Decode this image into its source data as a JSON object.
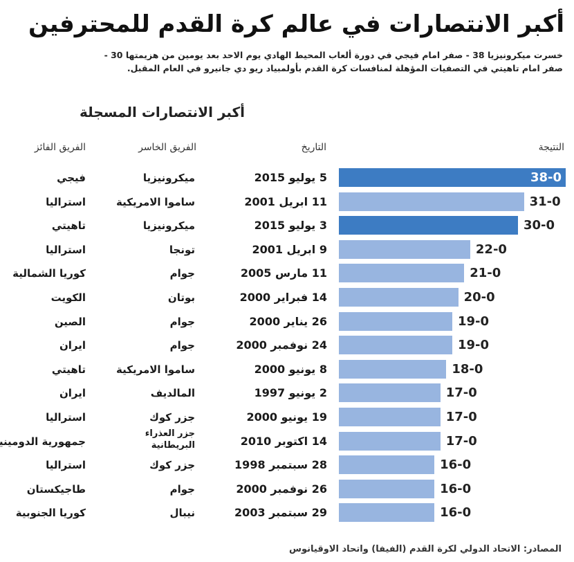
{
  "title": "أكبر الانتصارات في عالم كرة القدم للمحترفين",
  "subtitle_lines": [
    "خسرت ميكرونيزيا 38 - صفر امام فيجي في دورة ألعاب المحيط الهادي يوم الاحد بعد يومين من هزيمتها 30 -",
    "صفر امام تاهيتي  في التصفيات المؤهلة لمنافسات كرة القدم بأولمبياد ريو دي جانيرو في العام المقبل."
  ],
  "section_title": "أكبر الانتصارات المسجلة",
  "columns": {
    "winner": "الفريق الفائز",
    "loser": "الفريق الخاسر",
    "date": "التاريخ",
    "result": "النتيجة"
  },
  "colors": {
    "highlight": "#3d7cc3",
    "normal": "#98b5e0"
  },
  "chart_data": {
    "type": "bar",
    "orientation": "horizontal",
    "title": "أكبر الانتصارات المسجلة",
    "xlim": [
      0,
      38
    ],
    "rows": [
      {
        "winner": "فيجي",
        "loser": "ميكرونيزيا",
        "date": "5 يوليو 2015",
        "score": "38-0",
        "value": 38,
        "highlight": true
      },
      {
        "winner": "استراليا",
        "loser": "ساموا الامريكية",
        "date": "11 ابريل 2001",
        "score": "31-0",
        "value": 31,
        "highlight": false
      },
      {
        "winner": "تاهيتي",
        "loser": "ميكرونيزيا",
        "date": "3 يوليو 2015",
        "score": "30-0",
        "value": 30,
        "highlight": true
      },
      {
        "winner": "استراليا",
        "loser": "تونجا",
        "date": "9 ابريل 2001",
        "score": "22-0",
        "value": 22,
        "highlight": false
      },
      {
        "winner": "كوريا الشمالية",
        "loser": "جوام",
        "date": "11 مارس 2005",
        "score": "21-0",
        "value": 21,
        "highlight": false
      },
      {
        "winner": "الكويت",
        "loser": "بوتان",
        "date": "14 فبراير 2000",
        "score": "20-0",
        "value": 20,
        "highlight": false
      },
      {
        "winner": "الصين",
        "loser": "جوام",
        "date": "26 يناير 2000",
        "score": "19-0",
        "value": 19,
        "highlight": false
      },
      {
        "winner": "ايران",
        "loser": "جوام",
        "date": "24 نوفمبر 2000",
        "score": "19-0",
        "value": 19,
        "highlight": false
      },
      {
        "winner": "تاهيتي",
        "loser": "ساموا الامريكية",
        "date": "8 يونيو 2000",
        "score": "18-0",
        "value": 18,
        "highlight": false
      },
      {
        "winner": "ايران",
        "loser": "المالديف",
        "date": "2 يونيو 1997",
        "score": "17-0",
        "value": 17,
        "highlight": false
      },
      {
        "winner": "استراليا",
        "loser": "جزر كوك",
        "date": "19 يونيو 2000",
        "score": "17-0",
        "value": 17,
        "highlight": false
      },
      {
        "winner": "جمهورية الدومينيكان",
        "loser": "جزر العذراء البريطانية",
        "date": "14 اكتوبر 2010",
        "score": "17-0",
        "value": 17,
        "highlight": false
      },
      {
        "winner": "استراليا",
        "loser": "جزر كوك",
        "date": "28 سبتمبر 1998",
        "score": "16-0",
        "value": 16,
        "highlight": false
      },
      {
        "winner": "طاجيكستان",
        "loser": "جوام",
        "date": "26 نوفمبر 2000",
        "score": "16-0",
        "value": 16,
        "highlight": false
      },
      {
        "winner": "كوريا الجنوبية",
        "loser": "نيبال",
        "date": "29 سبتمبر 2003",
        "score": "16-0",
        "value": 16,
        "highlight": false
      }
    ]
  },
  "footer": "المصادر: الاتحاد الدولي لكرة القدم (الفيفا) واتحاد الاوقيانوس"
}
